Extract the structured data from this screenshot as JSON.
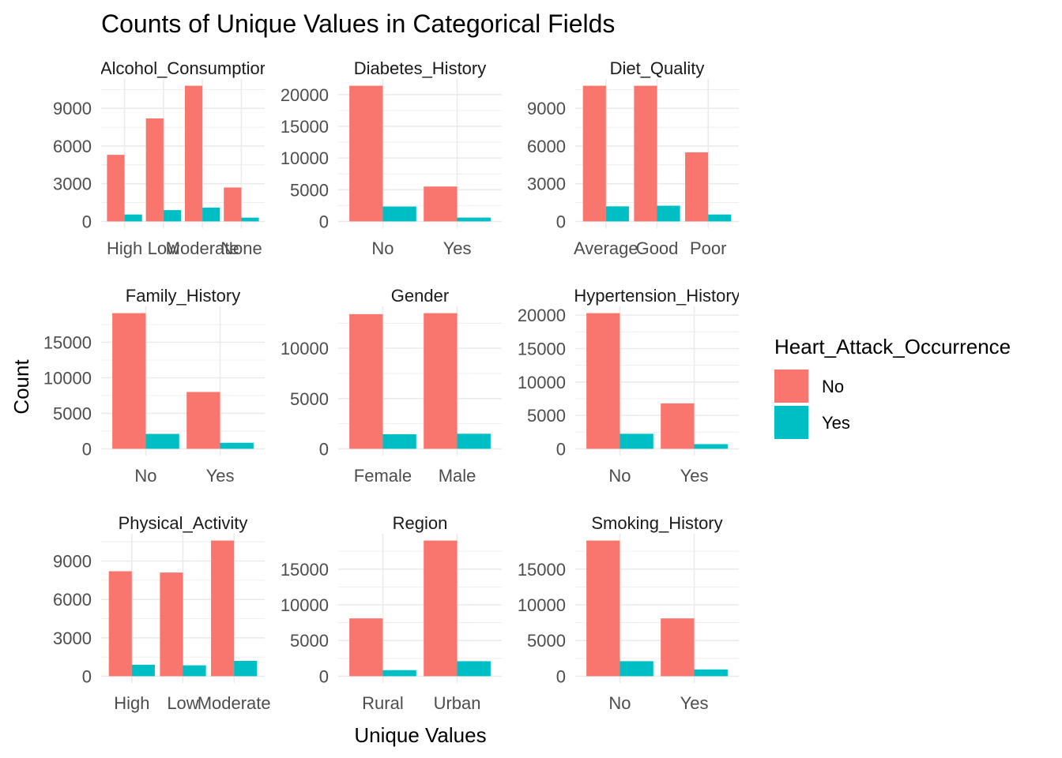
{
  "chart_data": {
    "type": "bar",
    "title": "Counts of Unique Values in Categorical Fields",
    "xlabel": "Unique Values",
    "ylabel": "Count",
    "legend": {
      "title": "Heart_Attack_Occurrence",
      "position": "right",
      "items": [
        {
          "name": "No",
          "color": "#F8766D"
        },
        {
          "name": "Yes",
          "color": "#00BFC4"
        }
      ]
    },
    "facets": [
      {
        "name": "Alcohol_Consumption",
        "display_title": "Alcohol_Consumptior",
        "categories": [
          "High",
          "Low",
          "Moderate",
          "None"
        ],
        "series": [
          {
            "name": "No",
            "values": [
              5300,
              8200,
              10800,
              2700
            ]
          },
          {
            "name": "Yes",
            "values": [
              550,
              900,
              1100,
              300
            ]
          }
        ],
        "ylim": [
          0,
          10800
        ],
        "yticks": [
          0,
          3000,
          6000,
          9000
        ]
      },
      {
        "name": "Diabetes_History",
        "display_title": "Diabetes_History",
        "categories": [
          "No",
          "Yes"
        ],
        "series": [
          {
            "name": "No",
            "values": [
              21400,
              5500
            ]
          },
          {
            "name": "Yes",
            "values": [
              2350,
              600
            ]
          }
        ],
        "ylim": [
          0,
          21400
        ],
        "yticks": [
          0,
          5000,
          10000,
          15000,
          20000
        ]
      },
      {
        "name": "Diet_Quality",
        "display_title": "Diet_Quality",
        "categories": [
          "Average",
          "Good",
          "Poor"
        ],
        "series": [
          {
            "name": "No",
            "values": [
              10800,
              10800,
              5500
            ]
          },
          {
            "name": "Yes",
            "values": [
              1200,
              1250,
              550
            ]
          }
        ],
        "ylim": [
          0,
          10800
        ],
        "yticks": [
          0,
          3000,
          6000,
          9000
        ]
      },
      {
        "name": "Family_History",
        "display_title": "Family_History",
        "categories": [
          "No",
          "Yes"
        ],
        "series": [
          {
            "name": "No",
            "values": [
              19100,
              8000
            ]
          },
          {
            "name": "Yes",
            "values": [
              2100,
              850
            ]
          }
        ],
        "ylim": [
          0,
          19100
        ],
        "yticks": [
          0,
          5000,
          10000,
          15000
        ]
      },
      {
        "name": "Gender",
        "display_title": "Gender",
        "categories": [
          "Female",
          "Male"
        ],
        "series": [
          {
            "name": "No",
            "values": [
              13400,
              13500
            ]
          },
          {
            "name": "Yes",
            "values": [
              1450,
              1500
            ]
          }
        ],
        "ylim": [
          0,
          13500
        ],
        "yticks": [
          0,
          5000,
          10000
        ]
      },
      {
        "name": "Hypertension_History",
        "display_title": "Hypertension_History",
        "categories": [
          "No",
          "Yes"
        ],
        "series": [
          {
            "name": "No",
            "values": [
              20300,
              6800
            ]
          },
          {
            "name": "Yes",
            "values": [
              2250,
              700
            ]
          }
        ],
        "ylim": [
          0,
          20300
        ],
        "yticks": [
          0,
          5000,
          10000,
          15000,
          20000
        ]
      },
      {
        "name": "Physical_Activity",
        "display_title": "Physical_Activity",
        "categories": [
          "High",
          "Low",
          "Moderate"
        ],
        "series": [
          {
            "name": "No",
            "values": [
              8200,
              8100,
              10600
            ]
          },
          {
            "name": "Yes",
            "values": [
              900,
              850,
              1200
            ]
          }
        ],
        "ylim": [
          0,
          10600
        ],
        "yticks": [
          0,
          3000,
          6000,
          9000
        ]
      },
      {
        "name": "Region",
        "display_title": "Region",
        "categories": [
          "Rural",
          "Urban"
        ],
        "series": [
          {
            "name": "No",
            "values": [
              8100,
              19000
            ]
          },
          {
            "name": "Yes",
            "values": [
              850,
              2100
            ]
          }
        ],
        "ylim": [
          0,
          19000
        ],
        "yticks": [
          0,
          5000,
          10000,
          15000
        ]
      },
      {
        "name": "Smoking_History",
        "display_title": "Smoking_History",
        "categories": [
          "No",
          "Yes"
        ],
        "series": [
          {
            "name": "No",
            "values": [
              19000,
              8100
            ]
          },
          {
            "name": "Yes",
            "values": [
              2100,
              950
            ]
          }
        ],
        "ylim": [
          0,
          19000
        ],
        "yticks": [
          0,
          5000,
          10000,
          15000
        ]
      }
    ]
  }
}
